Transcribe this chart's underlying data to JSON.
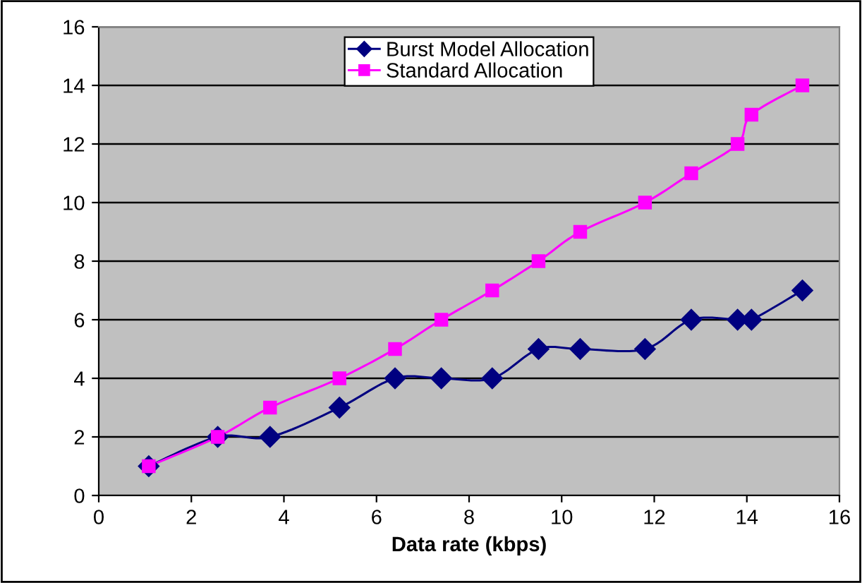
{
  "chart_data": {
    "type": "line",
    "xlabel": "Data rate (kbps)",
    "xlim": [
      0,
      16
    ],
    "xticks": [
      0,
      2,
      4,
      6,
      8,
      10,
      12,
      14,
      16
    ],
    "ylim": [
      0,
      16
    ],
    "yticks": [
      0,
      2,
      4,
      6,
      8,
      10,
      12,
      14,
      16
    ],
    "x": [
      1.08,
      2.57,
      3.7,
      5.2,
      6.4,
      7.4,
      8.5,
      9.5,
      10.4,
      11.8,
      12.8,
      13.8,
      14.1,
      15.2
    ],
    "series": [
      {
        "name": "Burst Model Allocation",
        "color": "#000080",
        "marker": "diamond",
        "values": [
          1,
          2,
          2,
          3,
          4,
          4,
          4,
          5,
          5,
          5,
          6,
          6,
          6,
          7
        ]
      },
      {
        "name": "Standard Allocation",
        "color": "#ff00ff",
        "marker": "square",
        "values": [
          1,
          2,
          3,
          4,
          5,
          6,
          7,
          8,
          9,
          10,
          11,
          12,
          13,
          14
        ]
      }
    ],
    "grid": "y",
    "legend": "top"
  }
}
